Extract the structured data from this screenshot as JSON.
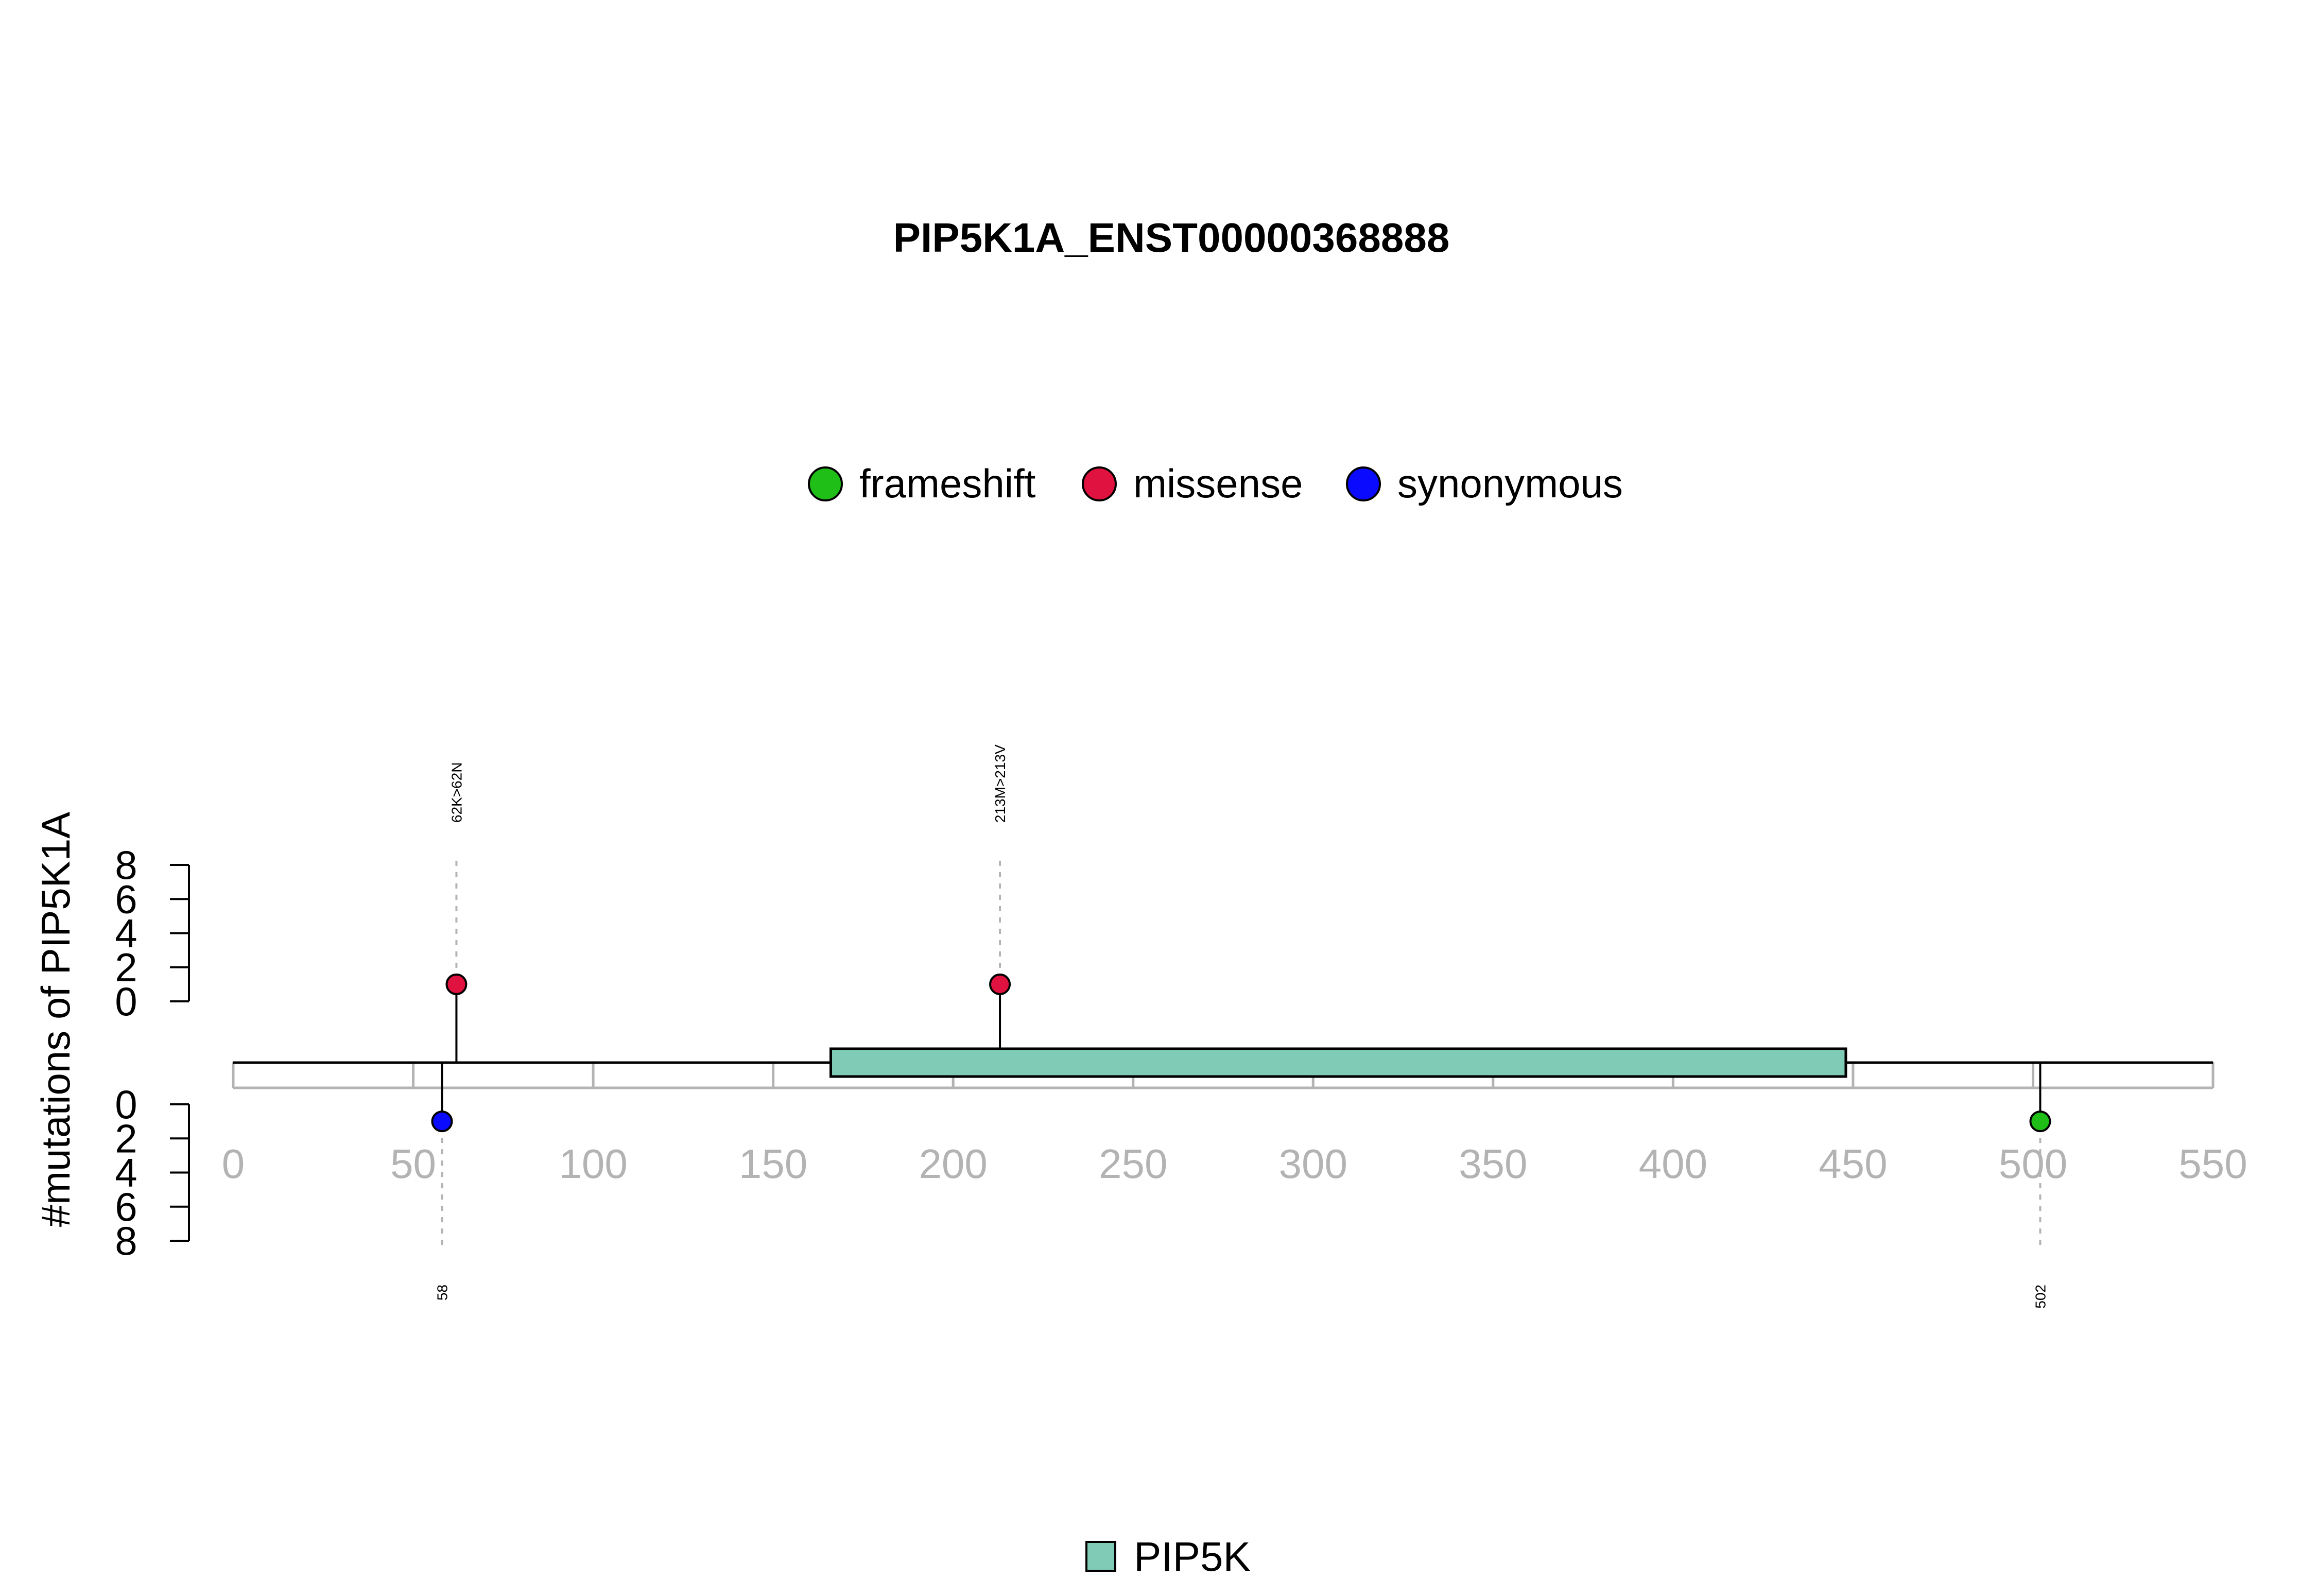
{
  "chart_data": {
    "type": "lollipop",
    "title": "PIP5K1A_ENST00000368888",
    "ylabel": "#mutations of PIP5K1A",
    "xlim": [
      0,
      550
    ],
    "x_ticks": [
      0,
      50,
      100,
      150,
      200,
      250,
      300,
      350,
      400,
      450,
      500,
      550
    ],
    "y_ticks_top": [
      0,
      2,
      4,
      6,
      8
    ],
    "y_ticks_bottom": [
      0,
      2,
      4,
      6,
      8
    ],
    "ylim": [
      0,
      8
    ],
    "protein_length": 550,
    "legend_entries": [
      {
        "label": "frameshift",
        "color": "#1fbf17"
      },
      {
        "label": "missense",
        "color": "#e0123f"
      },
      {
        "label": "synonymous",
        "color": "#0a0aff"
      }
    ],
    "mutations_top": [
      {
        "position": 62,
        "count": 1,
        "type": "missense",
        "label": "62K>62N"
      },
      {
        "position": 213,
        "count": 1,
        "type": "missense",
        "label": "213M>213V"
      }
    ],
    "mutations_bottom": [
      {
        "position": 58,
        "count": 1,
        "type": "synonymous",
        "label": "58"
      },
      {
        "position": 502,
        "count": 1,
        "type": "frameshift",
        "label": "502"
      }
    ],
    "domains": [
      {
        "name": "PIP5K",
        "start": 166,
        "end": 448,
        "color": "#7fcbb5"
      }
    ],
    "domain_legend": [
      {
        "label": "PIP5K",
        "color": "#7fcbb5"
      }
    ]
  }
}
